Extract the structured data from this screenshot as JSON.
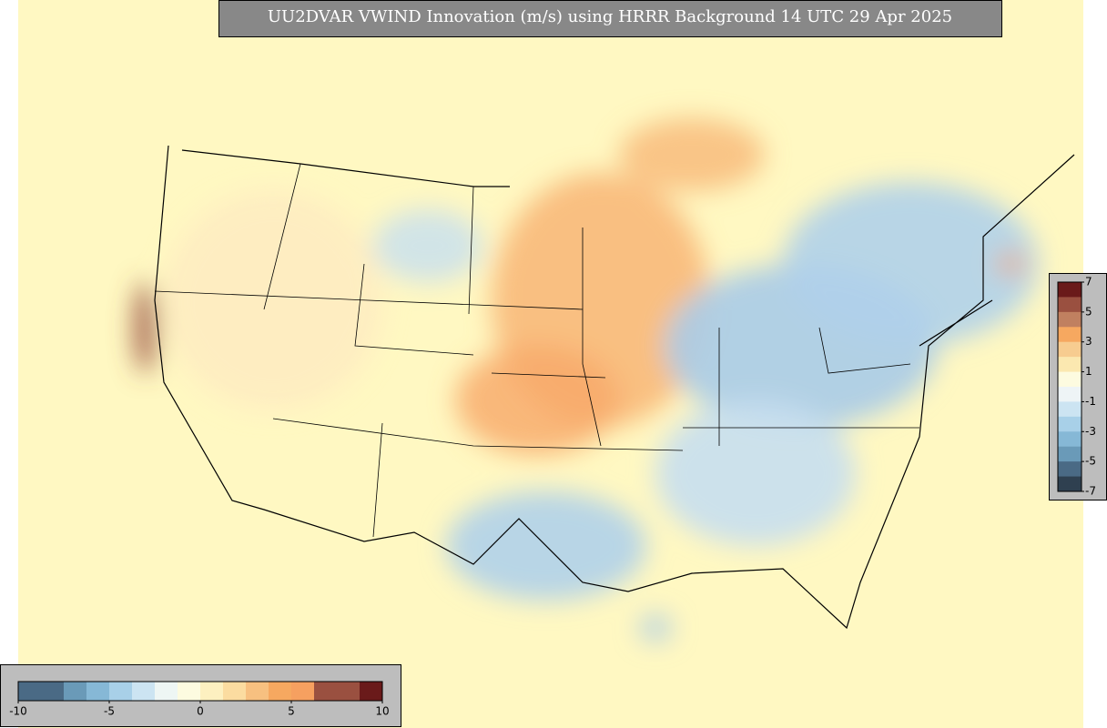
{
  "title": "UU2DVAR VWIND Innovation (m/s) using HRRR Background 14 UTC 29 Apr 2025",
  "colorbar_horizontal": {
    "ticks": [
      -10,
      -5,
      0,
      5,
      10
    ]
  },
  "colorbar_vertical": {
    "ticks": [
      7,
      5,
      3,
      1,
      -1,
      -3,
      -5,
      -7
    ]
  }
}
